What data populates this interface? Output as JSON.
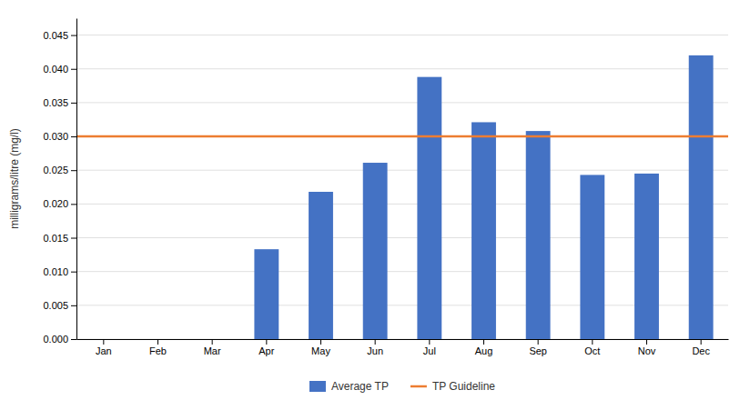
{
  "chart_data": {
    "type": "bar",
    "ylabel": "milligrams/litre (mg/l)",
    "categories": [
      "Jan",
      "Feb",
      "Mar",
      "Apr",
      "May",
      "Jun",
      "Jul",
      "Aug",
      "Sep",
      "Oct",
      "Nov",
      "Dec"
    ],
    "series": [
      {
        "name": "Average TP",
        "type": "bar",
        "color": "#4472C4",
        "values": [
          0,
          0,
          0,
          0.0133,
          0.0218,
          0.0261,
          0.0388,
          0.0321,
          0.0308,
          0.0243,
          0.0245,
          0.042
        ]
      }
    ],
    "guideline": {
      "name": "TP Guideline",
      "value": 0.03,
      "color": "#ED7D31"
    },
    "ylim": [
      0,
      0.0475
    ],
    "yticks": [
      {
        "value": 0,
        "label": "0.000"
      },
      0.005,
      {
        "value": 0.01,
        "label": "0.010"
      },
      0.015,
      {
        "value": 0.02,
        "label": "0.020"
      },
      0.025,
      {
        "value": 0.03,
        "label": "0.030"
      },
      0.035,
      {
        "value": 0.04,
        "label": "0.040"
      },
      0.045
    ],
    "grid": true,
    "legend": "bottom"
  }
}
